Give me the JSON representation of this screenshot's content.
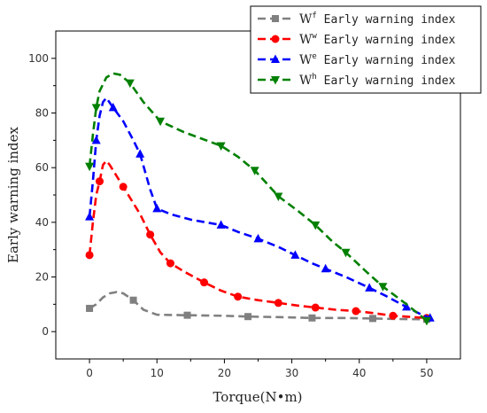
{
  "chart_data": {
    "type": "line",
    "xlabel": "Torque(N•m)",
    "ylabel": "Early warning index",
    "xlim": [
      -5,
      55
    ],
    "ylim": [
      -10,
      110
    ],
    "xticks": [
      "0",
      "10",
      "20",
      "30",
      "40",
      "50"
    ],
    "yticks": [
      "0",
      "20",
      "40",
      "60",
      "80",
      "100"
    ],
    "legend_position": "top-right",
    "grid": false,
    "series": [
      {
        "name": "Wf Early warning index",
        "symbol": "W",
        "superscript": "f",
        "suffix": " Early warning index",
        "color": "#808080",
        "marker": "square",
        "markers": [
          [
            0,
            8.5
          ],
          [
            6.5,
            11.5
          ],
          [
            14.5,
            6
          ],
          [
            23.5,
            5.5
          ],
          [
            33,
            5
          ],
          [
            42,
            4.8
          ],
          [
            50,
            4.5
          ]
        ],
        "curve": [
          [
            0,
            8.5
          ],
          [
            1,
            10
          ],
          [
            2,
            12.5
          ],
          [
            3,
            14
          ],
          [
            4,
            14.5
          ],
          [
            5,
            14
          ],
          [
            6.5,
            11.5
          ],
          [
            8,
            8
          ],
          [
            10,
            6.2
          ],
          [
            14.5,
            6
          ],
          [
            20,
            5.8
          ],
          [
            23.5,
            5.5
          ],
          [
            28,
            5.3
          ],
          [
            33,
            5
          ],
          [
            38,
            5
          ],
          [
            42,
            4.8
          ],
          [
            46,
            4.6
          ],
          [
            50,
            4.5
          ]
        ]
      },
      {
        "name": "Ww Early warning index",
        "symbol": "W",
        "superscript": "w",
        "suffix": " Early warning index",
        "color": "#ff0000",
        "marker": "circle",
        "markers": [
          [
            0,
            28
          ],
          [
            1.5,
            55
          ],
          [
            5,
            53
          ],
          [
            9,
            35.5
          ],
          [
            12,
            25
          ],
          [
            17,
            18
          ],
          [
            22,
            12.8
          ],
          [
            28,
            10.5
          ],
          [
            33.5,
            8.8
          ],
          [
            39.5,
            7.5
          ],
          [
            45,
            5.8
          ],
          [
            50,
            5
          ]
        ],
        "curve": [
          [
            0,
            28
          ],
          [
            0.5,
            40
          ],
          [
            1,
            50
          ],
          [
            1.5,
            55
          ],
          [
            2,
            61
          ],
          [
            2.5,
            62.5
          ],
          [
            3,
            61
          ],
          [
            4,
            57
          ],
          [
            5,
            53
          ],
          [
            6,
            49
          ],
          [
            7.5,
            43
          ],
          [
            9,
            35.5
          ],
          [
            10.5,
            29
          ],
          [
            12,
            25
          ],
          [
            14,
            22
          ],
          [
            17,
            18
          ],
          [
            19.5,
            15
          ],
          [
            22,
            12.8
          ],
          [
            25,
            11.5
          ],
          [
            28,
            10.5
          ],
          [
            31,
            9.5
          ],
          [
            33.5,
            8.8
          ],
          [
            36.5,
            8
          ],
          [
            39.5,
            7.5
          ],
          [
            42,
            6.8
          ],
          [
            45,
            5.8
          ],
          [
            48,
            5.3
          ],
          [
            50,
            5
          ]
        ]
      },
      {
        "name": "We Early warning index",
        "symbol": "W",
        "superscript": "e",
        "suffix": " Early warning index",
        "color": "#0000ff",
        "marker": "triangle-up",
        "markers": [
          [
            0,
            42
          ],
          [
            1,
            70
          ],
          [
            3.5,
            82
          ],
          [
            7.5,
            65
          ],
          [
            10,
            45
          ],
          [
            19.5,
            39
          ],
          [
            25,
            34
          ],
          [
            30.5,
            28
          ],
          [
            35,
            23
          ],
          [
            41.5,
            16
          ],
          [
            47,
            9
          ],
          [
            50.5,
            5
          ]
        ],
        "curve": [
          [
            0,
            42
          ],
          [
            0.5,
            55
          ],
          [
            1,
            70
          ],
          [
            1.5,
            79
          ],
          [
            2,
            84
          ],
          [
            2.5,
            85.5
          ],
          [
            3.5,
            82
          ],
          [
            5,
            77
          ],
          [
            6.5,
            70
          ],
          [
            7.5,
            65
          ],
          [
            9,
            52
          ],
          [
            10,
            45
          ],
          [
            12,
            43
          ],
          [
            15,
            41
          ],
          [
            19.5,
            39
          ],
          [
            22,
            36.5
          ],
          [
            25,
            34
          ],
          [
            28,
            31
          ],
          [
            30.5,
            28
          ],
          [
            33,
            25
          ],
          [
            35,
            23
          ],
          [
            38,
            20
          ],
          [
            41.5,
            16
          ],
          [
            44,
            13
          ],
          [
            47,
            9
          ],
          [
            49,
            6.5
          ],
          [
            50.5,
            5
          ]
        ]
      },
      {
        "name": "Wh Early warning index",
        "symbol": "W",
        "superscript": "h",
        "suffix": " Early warning index",
        "color": "#008000",
        "marker": "triangle-down",
        "markers": [
          [
            0,
            60.5
          ],
          [
            1,
            82
          ],
          [
            6,
            91
          ],
          [
            10.5,
            77
          ],
          [
            19.5,
            68
          ],
          [
            24.5,
            59
          ],
          [
            28,
            49.5
          ],
          [
            33.5,
            39
          ],
          [
            38,
            29
          ],
          [
            43.5,
            16.5
          ],
          [
            50,
            4
          ]
        ],
        "curve": [
          [
            0,
            60.5
          ],
          [
            0.5,
            72
          ],
          [
            1,
            82
          ],
          [
            1.5,
            88
          ],
          [
            2.5,
            93
          ],
          [
            3.5,
            94.5
          ],
          [
            4.5,
            94
          ],
          [
            6,
            91
          ],
          [
            8,
            84
          ],
          [
            10.5,
            77
          ],
          [
            14,
            73
          ],
          [
            19.5,
            68
          ],
          [
            22,
            64
          ],
          [
            24.5,
            59
          ],
          [
            26,
            55
          ],
          [
            28,
            49.5
          ],
          [
            31,
            44
          ],
          [
            33.5,
            39
          ],
          [
            36,
            33
          ],
          [
            38,
            29
          ],
          [
            41,
            22
          ],
          [
            43.5,
            16.5
          ],
          [
            47,
            10
          ],
          [
            50,
            4
          ]
        ]
      }
    ]
  }
}
